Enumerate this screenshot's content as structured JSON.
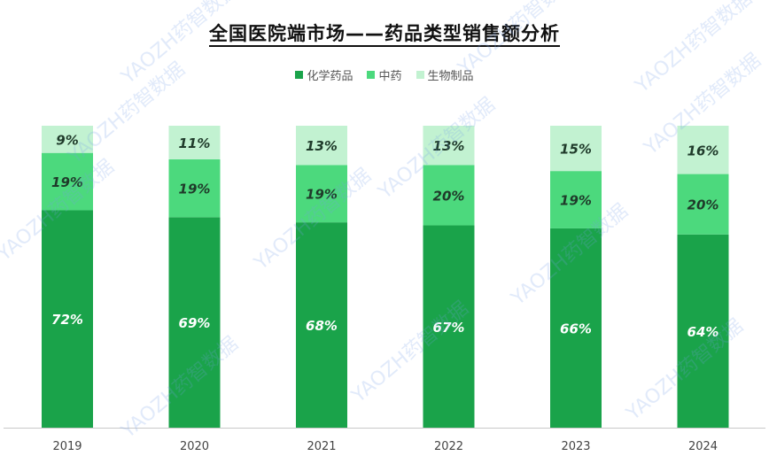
{
  "title": "全国医院端市场——药品类型销售额分析",
  "watermark_text": "YAOZH药智数据",
  "chart_data": {
    "type": "bar",
    "stacked": true,
    "categories": [
      "2019",
      "2020",
      "2021",
      "2022",
      "2023",
      "2024"
    ],
    "series": [
      {
        "name": "化学药品",
        "color": "#1aa34a",
        "values": [
          72,
          69,
          68,
          67,
          66,
          64
        ],
        "labels": [
          "72%",
          "69%",
          "68%",
          "67%",
          "66%",
          "64%"
        ]
      },
      {
        "name": "中药",
        "color": "#4cd97d",
        "values": [
          19,
          19,
          19,
          20,
          19,
          20
        ],
        "labels": [
          "19%",
          "19%",
          "19%",
          "20%",
          "19%",
          "20%"
        ]
      },
      {
        "name": "生物制品",
        "color": "#c2f2d1",
        "values": [
          9,
          11,
          13,
          13,
          15,
          16
        ],
        "labels": [
          "9%",
          "11%",
          "13%",
          "13%",
          "15%",
          "16%"
        ]
      }
    ],
    "ylim": [
      0,
      100
    ],
    "grid": false,
    "legend_position": "top"
  }
}
